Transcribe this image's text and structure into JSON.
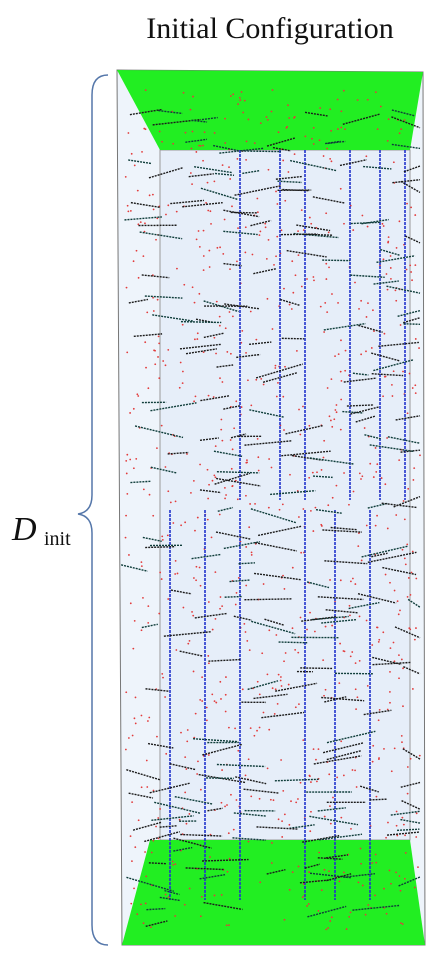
{
  "title": "Initial Configuration",
  "dimension_label": {
    "symbol": "D",
    "subscript": "init"
  }
}
